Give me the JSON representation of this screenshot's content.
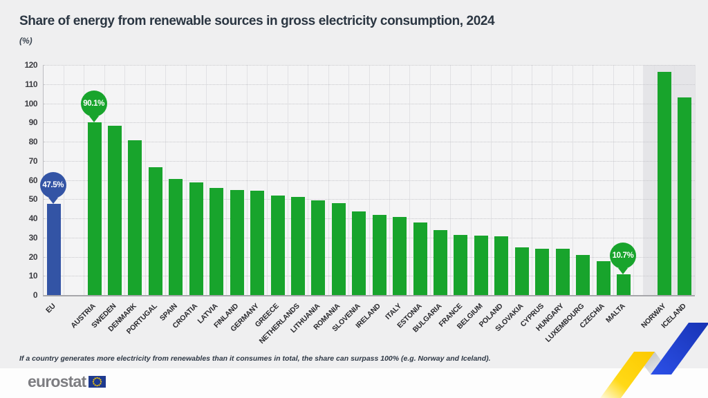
{
  "header": {
    "title": "Share of energy from renewable sources in gross electricity consumption, 2024",
    "unit_label": "(%)"
  },
  "chart_data": {
    "type": "bar",
    "title": "Share of energy from renewable sources in gross electricity consumption, 2024",
    "ylabel": "(%)",
    "ylim": [
      0,
      120
    ],
    "ytick_step": 10,
    "grid": true,
    "legend_position": "none",
    "bars": [
      {
        "label": "EU",
        "value": 47.5,
        "group": "eu-aggregate",
        "callout": "47.5%"
      },
      {
        "label": "AUSTRIA",
        "value": 90.1,
        "group": "member",
        "callout": "90.1%",
        "gap_before": true
      },
      {
        "label": "SWEDEN",
        "value": 88.3,
        "group": "member"
      },
      {
        "label": "DENMARK",
        "value": 80.9,
        "group": "member"
      },
      {
        "label": "PORTUGAL",
        "value": 66.5,
        "group": "member"
      },
      {
        "label": "SPAIN",
        "value": 60.5,
        "group": "member"
      },
      {
        "label": "CROATIA",
        "value": 58.7,
        "group": "member"
      },
      {
        "label": "LATVIA",
        "value": 56.0,
        "group": "member"
      },
      {
        "label": "FINLAND",
        "value": 54.9,
        "group": "member"
      },
      {
        "label": "GERMANY",
        "value": 54.5,
        "group": "member"
      },
      {
        "label": "GREECE",
        "value": 51.9,
        "group": "member"
      },
      {
        "label": "NETHERLANDS",
        "value": 51.0,
        "group": "member"
      },
      {
        "label": "LITHUANIA",
        "value": 49.3,
        "group": "member"
      },
      {
        "label": "ROMANIA",
        "value": 47.8,
        "group": "member"
      },
      {
        "label": "SLOVENIA",
        "value": 43.7,
        "group": "member"
      },
      {
        "label": "IRELAND",
        "value": 41.7,
        "group": "member"
      },
      {
        "label": "ITALY",
        "value": 40.9,
        "group": "member"
      },
      {
        "label": "ESTONIA",
        "value": 37.8,
        "group": "member"
      },
      {
        "label": "BULGARIA",
        "value": 34.0,
        "group": "member"
      },
      {
        "label": "FRANCE",
        "value": 31.4,
        "group": "member"
      },
      {
        "label": "BELGIUM",
        "value": 31.1,
        "group": "member"
      },
      {
        "label": "POLAND",
        "value": 30.7,
        "group": "member"
      },
      {
        "label": "SLOVAKIA",
        "value": 24.7,
        "group": "member"
      },
      {
        "label": "CYPRUS",
        "value": 24.1,
        "group": "member"
      },
      {
        "label": "HUNGARY",
        "value": 24.1,
        "group": "member"
      },
      {
        "label": "LUXEMBOURG",
        "value": 20.8,
        "group": "member"
      },
      {
        "label": "CZECHIA",
        "value": 17.8,
        "group": "member"
      },
      {
        "label": "MALTA",
        "value": 10.7,
        "group": "member",
        "callout": "10.7%"
      },
      {
        "label": "NORWAY",
        "value": 116.3,
        "group": "non-eu",
        "gap_before": true
      },
      {
        "label": "ICELAND",
        "value": 103.0,
        "group": "non-eu"
      }
    ]
  },
  "colors": {
    "member_bar": "#18a42c",
    "eu_bar": "#3354a5",
    "callout_green": "#18a42c",
    "callout_blue": "#3354a5",
    "noneu_panel": "#e5e5e8",
    "eu_flag_blue": "#1e3a8f",
    "eu_flag_stars": "#ffcc00"
  },
  "footnote": "If a country generates more electricity from renewables than it consumes in total, the share can surpass 100% (e.g. Norway and Iceland).",
  "footer": {
    "brand": "eurostat"
  }
}
